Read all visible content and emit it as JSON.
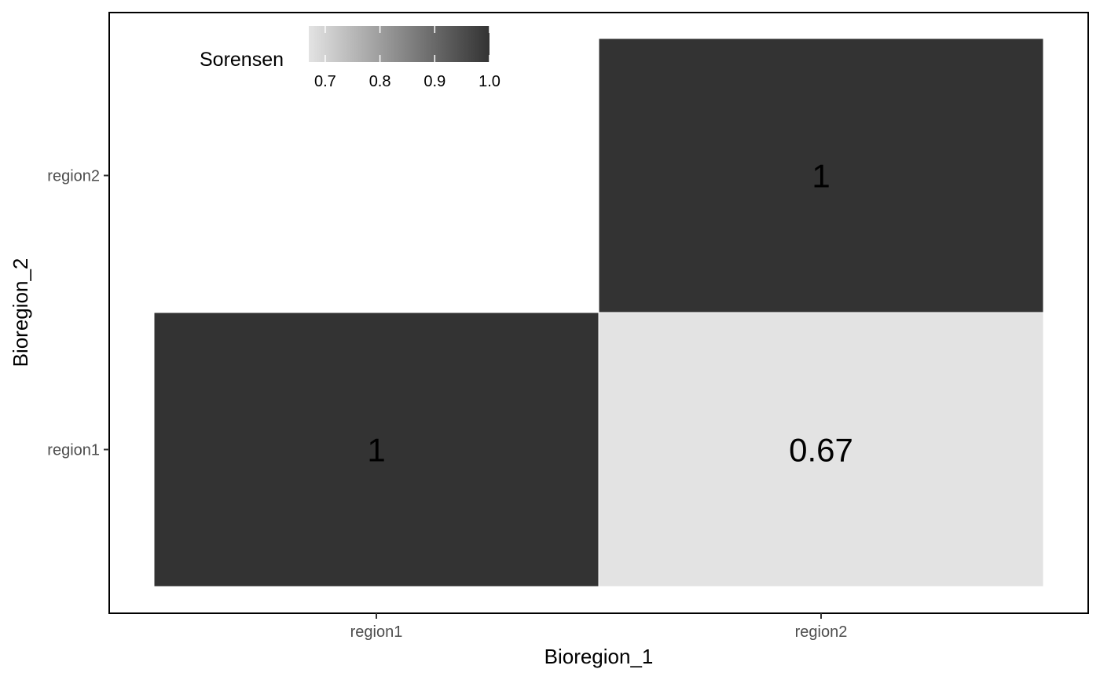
{
  "chart_data": {
    "type": "heatmap",
    "x_categories": [
      "region1",
      "region2"
    ],
    "y_categories": [
      "region1",
      "region2"
    ],
    "cells": [
      {
        "x": "region1",
        "y": "region1",
        "value": 1,
        "label": "1"
      },
      {
        "x": "region2",
        "y": "region1",
        "value": 0.67,
        "label": "0.67"
      },
      {
        "x": "region2",
        "y": "region2",
        "value": 1,
        "label": "1"
      }
    ],
    "xlabel": "Bioregion_1",
    "ylabel": "Bioregion_2",
    "legend": {
      "title": "Sorensen",
      "placement": "top-left",
      "range": [
        0.67,
        1.0
      ],
      "ticks": [
        0.7,
        0.8,
        0.9,
        1.0
      ],
      "tick_labels": [
        "0.7",
        "0.8",
        "0.9",
        "1.0"
      ],
      "low_color": "#e3e3e3",
      "high_color": "#333333"
    },
    "grid": false
  }
}
